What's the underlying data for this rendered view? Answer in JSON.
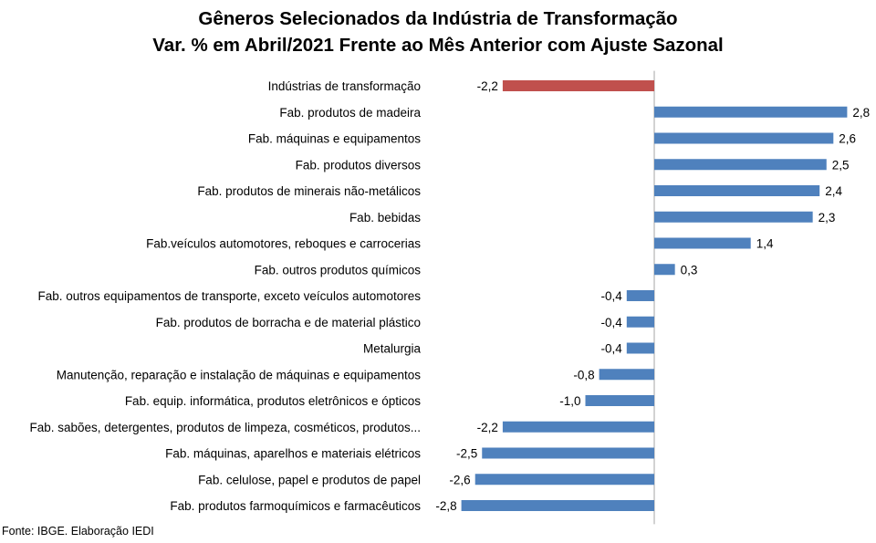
{
  "title_lines": [
    "Gêneros Selecionados da Indústria de Transformação",
    "Var. % em Abril/2021 Frente ao Mês Anterior com Ajuste Sazonal"
  ],
  "source": "Fonte: IBGE. Elaboração IEDI",
  "colors": {
    "total": "#c0504d",
    "sector": "#4f81bd",
    "axis": "#a6a6a6"
  },
  "chart_data": {
    "type": "bar",
    "orientation": "horizontal",
    "title": "Gêneros Selecionados da Indústria de Transformação Var. % em Abril/2021 Frente ao Mês Anterior com Ajuste Sazonal",
    "xlabel": "",
    "ylabel": "",
    "xlim": [
      -2.8,
      2.8
    ],
    "grid": false,
    "legend": "none",
    "categories": [
      "Indústrias de transformação",
      "Fab. produtos de madeira",
      "Fab. máquinas e equipamentos",
      "Fab. produtos diversos",
      "Fab. produtos de minerais não-metálicos",
      "Fab. bebidas",
      "Fab.veículos automotores, reboques e carrocerias",
      "Fab. outros produtos químicos",
      "Fab. outros equipamentos de transporte, exceto veículos automotores",
      "Fab. produtos de borracha e de material plástico",
      "Metalurgia",
      "Manutenção, reparação e instalação de máquinas e equipamentos",
      "Fab. equip. informática, produtos eletrônicos e ópticos",
      "Fab. sabões, detergentes, produtos de limpeza, cosméticos, produtos...",
      "Fab. máquinas, aparelhos e materiais elétricos",
      "Fab. celulose, papel e produtos de papel",
      "Fab. produtos farmoquímicos e farmacêuticos"
    ],
    "values": [
      -2.2,
      2.8,
      2.6,
      2.5,
      2.4,
      2.3,
      1.4,
      0.3,
      -0.4,
      -0.4,
      -0.4,
      -0.8,
      -1.0,
      -2.2,
      -2.5,
      -2.6,
      -2.8
    ],
    "value_labels": [
      "-2,2",
      "2,8",
      "2,6",
      "2,5",
      "2,4",
      "2,3",
      "1,4",
      "0,3",
      "-0,4",
      "-0,4",
      "-0,4",
      "-0,8",
      "-1,0",
      "-2,2",
      "-2,5",
      "-2,6",
      "-2,8"
    ],
    "highlight_index": 0
  }
}
